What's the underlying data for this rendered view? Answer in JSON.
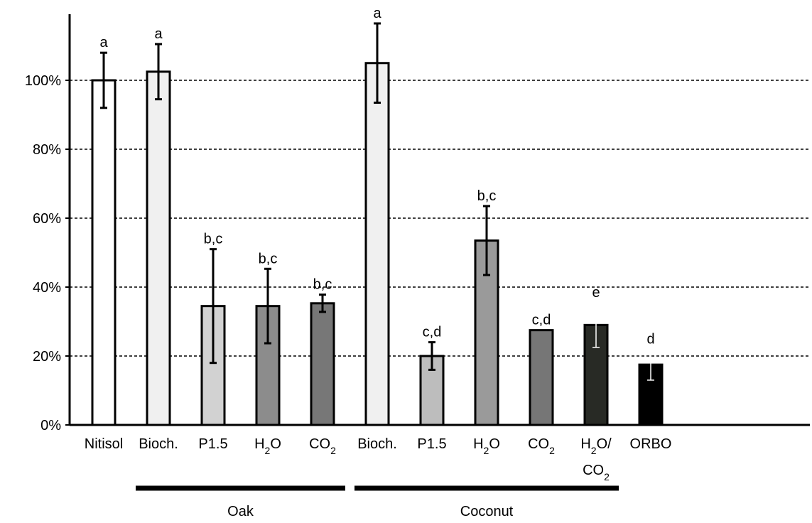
{
  "chart_data": {
    "type": "bar",
    "title": "",
    "xlabel": "",
    "ylabel": "",
    "ylim": [
      0,
      1.0
    ],
    "y_tick_values": [
      0,
      0.2,
      0.4,
      0.6,
      0.8,
      1.0
    ],
    "y_tick_labels": [
      "0%",
      "20%",
      "40%",
      "60%",
      "80%",
      "100%"
    ],
    "grid": "horizontal dashed",
    "categories": [
      {
        "lines": [
          {
            "text": "Nitisol",
            "sub": ""
          }
        ]
      },
      {
        "lines": [
          {
            "text": "Bioch.",
            "sub": ""
          }
        ]
      },
      {
        "lines": [
          {
            "text": "P1.5",
            "sub": ""
          }
        ]
      },
      {
        "lines": [
          {
            "text": "H",
            "sub": "2",
            "after": "O"
          }
        ]
      },
      {
        "lines": [
          {
            "text": "CO",
            "sub": "2",
            "after": ""
          }
        ]
      },
      {
        "lines": [
          {
            "text": "Bioch.",
            "sub": ""
          }
        ]
      },
      {
        "lines": [
          {
            "text": "P1.5",
            "sub": ""
          }
        ]
      },
      {
        "lines": [
          {
            "text": "H",
            "sub": "2",
            "after": "O"
          }
        ]
      },
      {
        "lines": [
          {
            "text": "CO",
            "sub": "2",
            "after": ""
          }
        ]
      },
      {
        "lines": [
          {
            "text": "H",
            "sub": "2",
            "after": "O/"
          },
          {
            "text": "CO",
            "sub": "2",
            "after": ""
          }
        ]
      },
      {
        "lines": [
          {
            "text": "ORBO",
            "sub": ""
          }
        ]
      }
    ],
    "values": [
      1.0,
      1.025,
      0.345,
      0.345,
      0.353,
      1.05,
      0.2,
      0.535,
      0.275,
      0.29,
      0.175
    ],
    "error": [
      0.08,
      0.08,
      0.165,
      0.108,
      0.025,
      0.115,
      0.04,
      0.1,
      0.0,
      0.065,
      0.045
    ],
    "significance_labels": [
      "a",
      "a",
      "b,c",
      "b,c",
      "b,c",
      "a",
      "c,d",
      "b,c",
      "c,d",
      "e",
      "d"
    ],
    "bar_colors": [
      "#ffffff",
      "#f0f0f0",
      "#d2d2d2",
      "#8c8c8c",
      "#777777",
      "#f0f0f0",
      "#bdbdbd",
      "#9a9a9a",
      "#767676",
      "#282a25",
      "#000000"
    ],
    "error_bar_colors": [
      "#000000",
      "#000000",
      "#000000",
      "#000000",
      "#000000",
      "#000000",
      "#000000",
      "#000000",
      "#000000",
      "#ffffff",
      "#ffffff"
    ],
    "groups": [
      {
        "label": "Oak",
        "categories": [
          1,
          4
        ]
      },
      {
        "label": "Coconut",
        "categories": [
          5,
          9
        ]
      }
    ]
  }
}
